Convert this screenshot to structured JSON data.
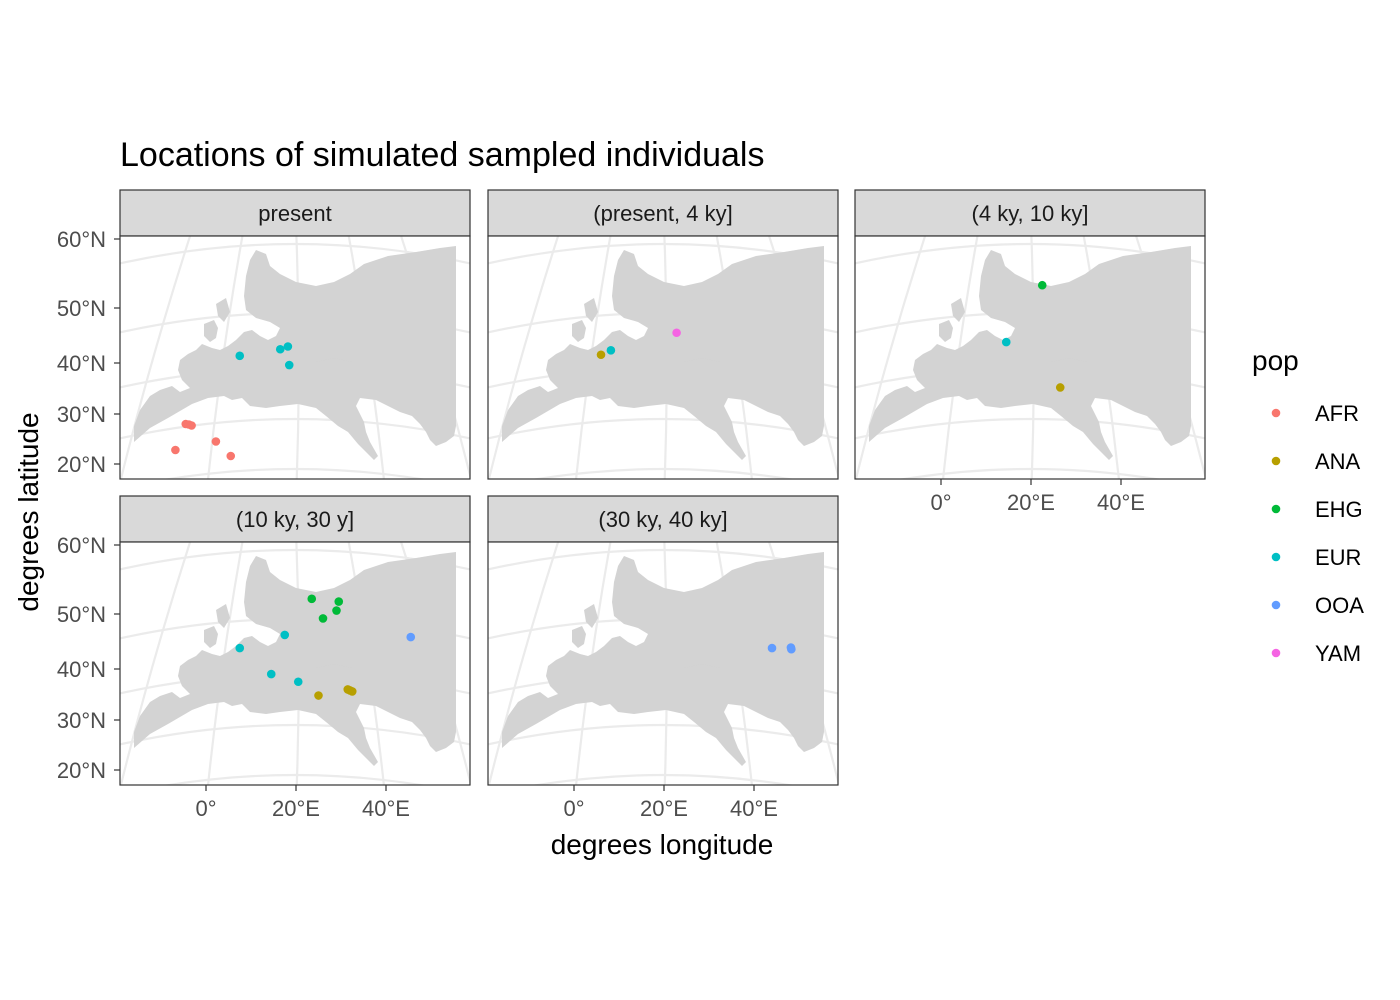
{
  "chart_data": {
    "type": "scatter",
    "title": "Locations of simulated sampled individuals",
    "xlabel": "degrees longitude",
    "ylabel": "degrees latitude",
    "x_ticks": [
      "0°",
      "20°E",
      "40°E"
    ],
    "y_ticks": [
      "60°N",
      "50°N",
      "40°N",
      "30°N",
      "20°N"
    ],
    "legend": {
      "title": "pop",
      "placement": "right",
      "entries": [
        {
          "name": "AFR",
          "color": "#F8766D"
        },
        {
          "name": "ANA",
          "color": "#B79F00"
        },
        {
          "name": "EHG",
          "color": "#00BA38"
        },
        {
          "name": "EUR",
          "color": "#00BFC4"
        },
        {
          "name": "OOA",
          "color": "#619CFF"
        },
        {
          "name": "YAM",
          "color": "#F564E3"
        }
      ]
    },
    "grid": true,
    "panels": [
      {
        "label": "present",
        "points": [
          {
            "pop": "AFR",
            "lon": -4.5,
            "lat": 28.0
          },
          {
            "pop": "AFR",
            "lon": -3.8,
            "lat": 27.9
          },
          {
            "pop": "AFR",
            "lon": -3.2,
            "lat": 27.7
          },
          {
            "pop": "AFR",
            "lon": 2.2,
            "lat": 24.5
          },
          {
            "pop": "AFR",
            "lon": -6.8,
            "lat": 22.8
          },
          {
            "pop": "AFR",
            "lon": 5.5,
            "lat": 21.6
          },
          {
            "pop": "EUR",
            "lon": 7.5,
            "lat": 41.3
          },
          {
            "pop": "EUR",
            "lon": 16.5,
            "lat": 42.5
          },
          {
            "pop": "EUR",
            "lon": 18.2,
            "lat": 43.0
          },
          {
            "pop": "EUR",
            "lon": 18.5,
            "lat": 39.6
          }
        ]
      },
      {
        "label": "(present, 4 ky]",
        "points": [
          {
            "pop": "ANA",
            "lon": 6.0,
            "lat": 41.5
          },
          {
            "pop": "EUR",
            "lon": 8.2,
            "lat": 42.3
          },
          {
            "pop": "YAM",
            "lon": 22.8,
            "lat": 45.5
          }
        ]
      },
      {
        "label": "(4 ky, 10 ky]",
        "points": [
          {
            "pop": "EHG",
            "lon": 22.5,
            "lat": 53.3
          },
          {
            "pop": "EUR",
            "lon": 14.5,
            "lat": 43.8
          },
          {
            "pop": "ANA",
            "lon": 26.5,
            "lat": 35.2
          }
        ]
      },
      {
        "label": "(10 ky, 30 y]",
        "points": [
          {
            "pop": "EHG",
            "lon": 23.5,
            "lat": 52.2
          },
          {
            "pop": "EHG",
            "lon": 29.5,
            "lat": 51.8
          },
          {
            "pop": "EHG",
            "lon": 29.0,
            "lat": 50.5
          },
          {
            "pop": "EHG",
            "lon": 26.0,
            "lat": 49.2
          },
          {
            "pop": "EUR",
            "lon": 17.5,
            "lat": 46.2
          },
          {
            "pop": "EUR",
            "lon": 7.5,
            "lat": 43.8
          },
          {
            "pop": "EUR",
            "lon": 14.5,
            "lat": 39.0
          },
          {
            "pop": "EUR",
            "lon": 20.5,
            "lat": 37.5
          },
          {
            "pop": "ANA",
            "lon": 25.0,
            "lat": 34.8
          },
          {
            "pop": "ANA",
            "lon": 31.5,
            "lat": 36.0
          },
          {
            "pop": "ANA",
            "lon": 32.0,
            "lat": 35.8
          },
          {
            "pop": "ANA",
            "lon": 32.5,
            "lat": 35.6
          },
          {
            "pop": "OOA",
            "lon": 45.5,
            "lat": 45.8
          }
        ]
      },
      {
        "label": "(30 ky, 40 ky]",
        "points": [
          {
            "pop": "OOA",
            "lon": 44.0,
            "lat": 43.8
          },
          {
            "pop": "OOA",
            "lon": 48.2,
            "lat": 43.9
          },
          {
            "pop": "OOA",
            "lon": 48.3,
            "lat": 43.6
          }
        ]
      }
    ]
  }
}
